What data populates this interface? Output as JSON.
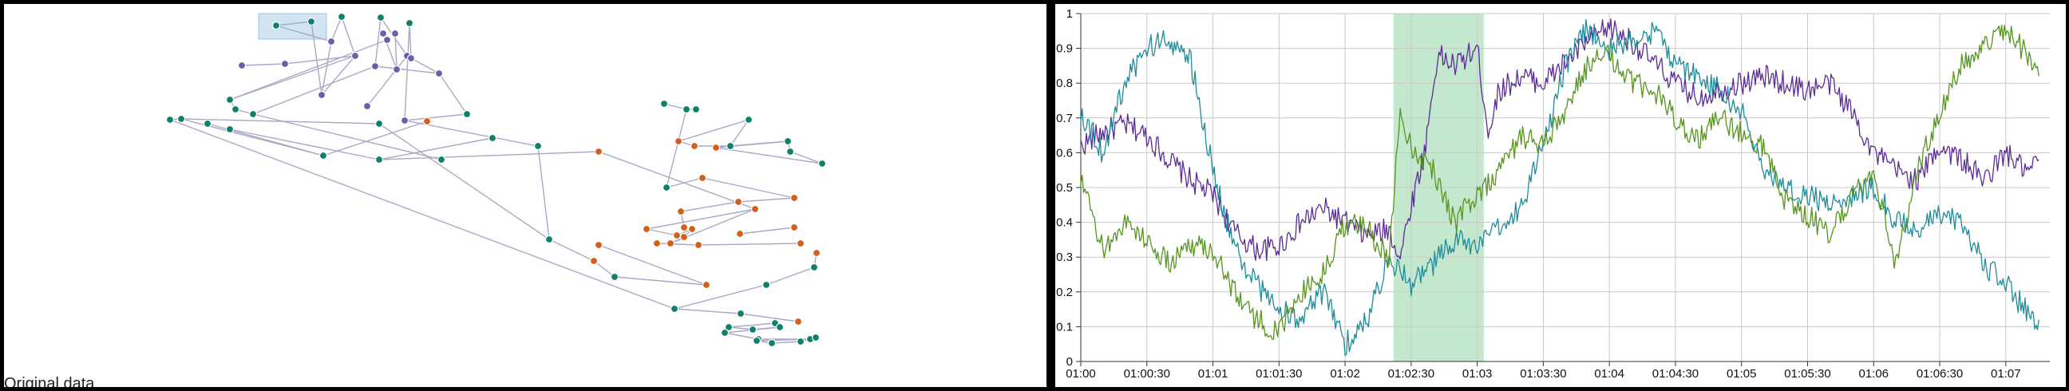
{
  "left_panel": {
    "caption": "Original data",
    "colors": {
      "teal": "#11806a",
      "purple": "#6a5fa8",
      "orange": "#d2601a",
      "edge": "#a9a9c6",
      "selection": "#bcd8ec"
    }
  },
  "chart_data": {
    "type": "line",
    "title": "",
    "xlabel": "",
    "ylabel": "",
    "x_ticks": [
      "01:00",
      "01:00:30",
      "01:01",
      "01:01:30",
      "01:02",
      "01:02:30",
      "01:03",
      "01:03:30",
      "01:04",
      "01:04:30",
      "01:05",
      "01:05:30",
      "01:06",
      "01:06:30",
      "01:07"
    ],
    "y_ticks": [
      "0",
      "0.1",
      "0.2",
      "0.3",
      "0.4",
      "0.5",
      "0.6",
      "0.7",
      "0.8",
      "0.9",
      "1"
    ],
    "ylim": [
      0,
      1
    ],
    "xlim": [
      "01:00:00",
      "01:07:20"
    ],
    "grid": true,
    "highlight": {
      "start": "01:02:22",
      "end": "01:03:03",
      "color": "#a4dcb4"
    },
    "series": [
      {
        "color": "#5b2c96",
        "keypoints": [
          [
            "01:00:00",
            0.62
          ],
          [
            "01:00:10",
            0.66
          ],
          [
            "01:00:20",
            0.68
          ],
          [
            "01:00:30",
            0.65
          ],
          [
            "01:00:40",
            0.58
          ],
          [
            "01:00:50",
            0.52
          ],
          [
            "01:01:00",
            0.48
          ],
          [
            "01:01:10",
            0.37
          ],
          [
            "01:01:20",
            0.32
          ],
          [
            "01:01:30",
            0.33
          ],
          [
            "01:01:40",
            0.4
          ],
          [
            "01:01:50",
            0.44
          ],
          [
            "01:02:00",
            0.4
          ],
          [
            "01:02:10",
            0.36
          ],
          [
            "01:02:20",
            0.38
          ],
          [
            "01:02:25",
            0.3
          ],
          [
            "01:02:30",
            0.45
          ],
          [
            "01:02:36",
            0.6
          ],
          [
            "01:02:42",
            0.88
          ],
          [
            "01:02:50",
            0.85
          ],
          [
            "01:03:00",
            0.9
          ],
          [
            "01:03:05",
            0.66
          ],
          [
            "01:03:10",
            0.78
          ],
          [
            "01:03:20",
            0.82
          ],
          [
            "01:03:30",
            0.8
          ],
          [
            "01:03:40",
            0.86
          ],
          [
            "01:03:50",
            0.92
          ],
          [
            "01:04:00",
            0.96
          ],
          [
            "01:04:10",
            0.92
          ],
          [
            "01:04:20",
            0.86
          ],
          [
            "01:04:30",
            0.8
          ],
          [
            "01:04:40",
            0.76
          ],
          [
            "01:04:50",
            0.78
          ],
          [
            "01:05:00",
            0.8
          ],
          [
            "01:05:10",
            0.82
          ],
          [
            "01:05:20",
            0.8
          ],
          [
            "01:05:30",
            0.78
          ],
          [
            "01:05:40",
            0.8
          ],
          [
            "01:05:50",
            0.72
          ],
          [
            "01:06:00",
            0.6
          ],
          [
            "01:06:10",
            0.55
          ],
          [
            "01:06:20",
            0.52
          ],
          [
            "01:06:30",
            0.62
          ],
          [
            "01:06:40",
            0.58
          ],
          [
            "01:06:50",
            0.52
          ],
          [
            "01:07:00",
            0.6
          ],
          [
            "01:07:10",
            0.54
          ],
          [
            "01:07:15",
            0.58
          ]
        ]
      },
      {
        "color": "#1e8c9a",
        "keypoints": [
          [
            "01:00:00",
            0.72
          ],
          [
            "01:00:10",
            0.6
          ],
          [
            "01:00:20",
            0.8
          ],
          [
            "01:00:30",
            0.9
          ],
          [
            "01:00:40",
            0.93
          ],
          [
            "01:00:50",
            0.86
          ],
          [
            "01:01:00",
            0.55
          ],
          [
            "01:01:10",
            0.32
          ],
          [
            "01:01:20",
            0.22
          ],
          [
            "01:01:30",
            0.15
          ],
          [
            "01:01:40",
            0.12
          ],
          [
            "01:01:50",
            0.2
          ],
          [
            "01:02:00",
            0.05
          ],
          [
            "01:02:10",
            0.12
          ],
          [
            "01:02:20",
            0.3
          ],
          [
            "01:02:30",
            0.22
          ],
          [
            "01:02:40",
            0.28
          ],
          [
            "01:02:50",
            0.35
          ],
          [
            "01:03:00",
            0.33
          ],
          [
            "01:03:10",
            0.38
          ],
          [
            "01:03:20",
            0.45
          ],
          [
            "01:03:30",
            0.62
          ],
          [
            "01:03:40",
            0.85
          ],
          [
            "01:03:50",
            0.96
          ],
          [
            "01:04:00",
            0.9
          ],
          [
            "01:04:10",
            0.92
          ],
          [
            "01:04:20",
            0.95
          ],
          [
            "01:04:30",
            0.86
          ],
          [
            "01:04:40",
            0.82
          ],
          [
            "01:04:50",
            0.78
          ],
          [
            "01:05:00",
            0.72
          ],
          [
            "01:05:10",
            0.55
          ],
          [
            "01:05:20",
            0.5
          ],
          [
            "01:05:30",
            0.48
          ],
          [
            "01:05:40",
            0.45
          ],
          [
            "01:05:50",
            0.48
          ],
          [
            "01:06:00",
            0.5
          ],
          [
            "01:06:10",
            0.4
          ],
          [
            "01:06:20",
            0.38
          ],
          [
            "01:06:30",
            0.42
          ],
          [
            "01:06:40",
            0.4
          ],
          [
            "01:06:50",
            0.28
          ],
          [
            "01:07:00",
            0.22
          ],
          [
            "01:07:10",
            0.14
          ],
          [
            "01:07:15",
            0.12
          ]
        ]
      },
      {
        "color": "#56951f",
        "keypoints": [
          [
            "01:00:00",
            0.52
          ],
          [
            "01:00:10",
            0.32
          ],
          [
            "01:00:20",
            0.4
          ],
          [
            "01:00:30",
            0.35
          ],
          [
            "01:00:40",
            0.28
          ],
          [
            "01:00:50",
            0.34
          ],
          [
            "01:01:00",
            0.32
          ],
          [
            "01:01:10",
            0.2
          ],
          [
            "01:01:20",
            0.12
          ],
          [
            "01:01:30",
            0.08
          ],
          [
            "01:01:40",
            0.2
          ],
          [
            "01:01:50",
            0.25
          ],
          [
            "01:02:00",
            0.4
          ],
          [
            "01:02:10",
            0.38
          ],
          [
            "01:02:20",
            0.3
          ],
          [
            "01:02:25",
            0.72
          ],
          [
            "01:02:30",
            0.62
          ],
          [
            "01:02:40",
            0.55
          ],
          [
            "01:02:50",
            0.4
          ],
          [
            "01:03:00",
            0.48
          ],
          [
            "01:03:10",
            0.55
          ],
          [
            "01:03:20",
            0.65
          ],
          [
            "01:03:30",
            0.62
          ],
          [
            "01:03:40",
            0.72
          ],
          [
            "01:03:50",
            0.85
          ],
          [
            "01:04:00",
            0.88
          ],
          [
            "01:04:10",
            0.8
          ],
          [
            "01:04:20",
            0.78
          ],
          [
            "01:04:30",
            0.7
          ],
          [
            "01:04:40",
            0.64
          ],
          [
            "01:04:50",
            0.7
          ],
          [
            "01:05:00",
            0.66
          ],
          [
            "01:05:10",
            0.62
          ],
          [
            "01:05:20",
            0.46
          ],
          [
            "01:05:30",
            0.42
          ],
          [
            "01:05:40",
            0.36
          ],
          [
            "01:05:50",
            0.48
          ],
          [
            "01:06:00",
            0.55
          ],
          [
            "01:06:10",
            0.28
          ],
          [
            "01:06:20",
            0.55
          ],
          [
            "01:06:30",
            0.72
          ],
          [
            "01:06:40",
            0.85
          ],
          [
            "01:06:50",
            0.9
          ],
          [
            "01:07:00",
            0.96
          ],
          [
            "01:07:10",
            0.88
          ],
          [
            "01:07:15",
            0.82
          ]
        ]
      }
    ]
  }
}
